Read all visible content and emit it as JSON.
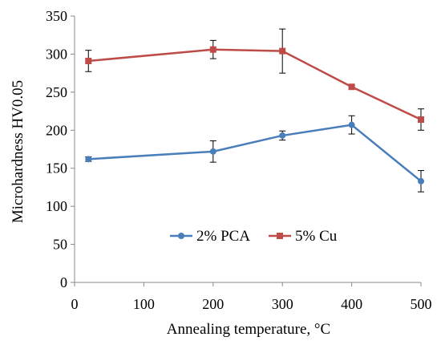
{
  "chart_data": {
    "type": "line",
    "title": "",
    "xlabel": "Annealing temperature, °C",
    "ylabel": "Microhardness HV0.05",
    "xlim": [
      0,
      500
    ],
    "ylim": [
      0,
      350
    ],
    "xticks": [
      0,
      100,
      200,
      300,
      400,
      500
    ],
    "yticks": [
      0,
      50,
      100,
      150,
      200,
      250,
      300,
      350
    ],
    "xtick_labels": [
      "0",
      "100",
      "200",
      "300",
      "400",
      "500"
    ],
    "ytick_labels": [
      "0",
      "50",
      "100",
      "150",
      "200",
      "250",
      "300",
      "350"
    ],
    "grid": false,
    "legend_position": "center-right",
    "series": [
      {
        "name": "2% PCA",
        "color": "#4a7ebb",
        "marker": "circle",
        "x": [
          20,
          200,
          300,
          400,
          500
        ],
        "y": [
          162,
          172,
          193,
          207,
          133
        ],
        "error": [
          3,
          14,
          6,
          12,
          14
        ]
      },
      {
        "name": "5% Cu",
        "color": "#be4b48",
        "marker": "square",
        "x": [
          20,
          200,
          300,
          400,
          500
        ],
        "y": [
          291,
          306,
          304,
          257,
          214
        ],
        "error": [
          14,
          12,
          29,
          3,
          14
        ]
      }
    ]
  }
}
